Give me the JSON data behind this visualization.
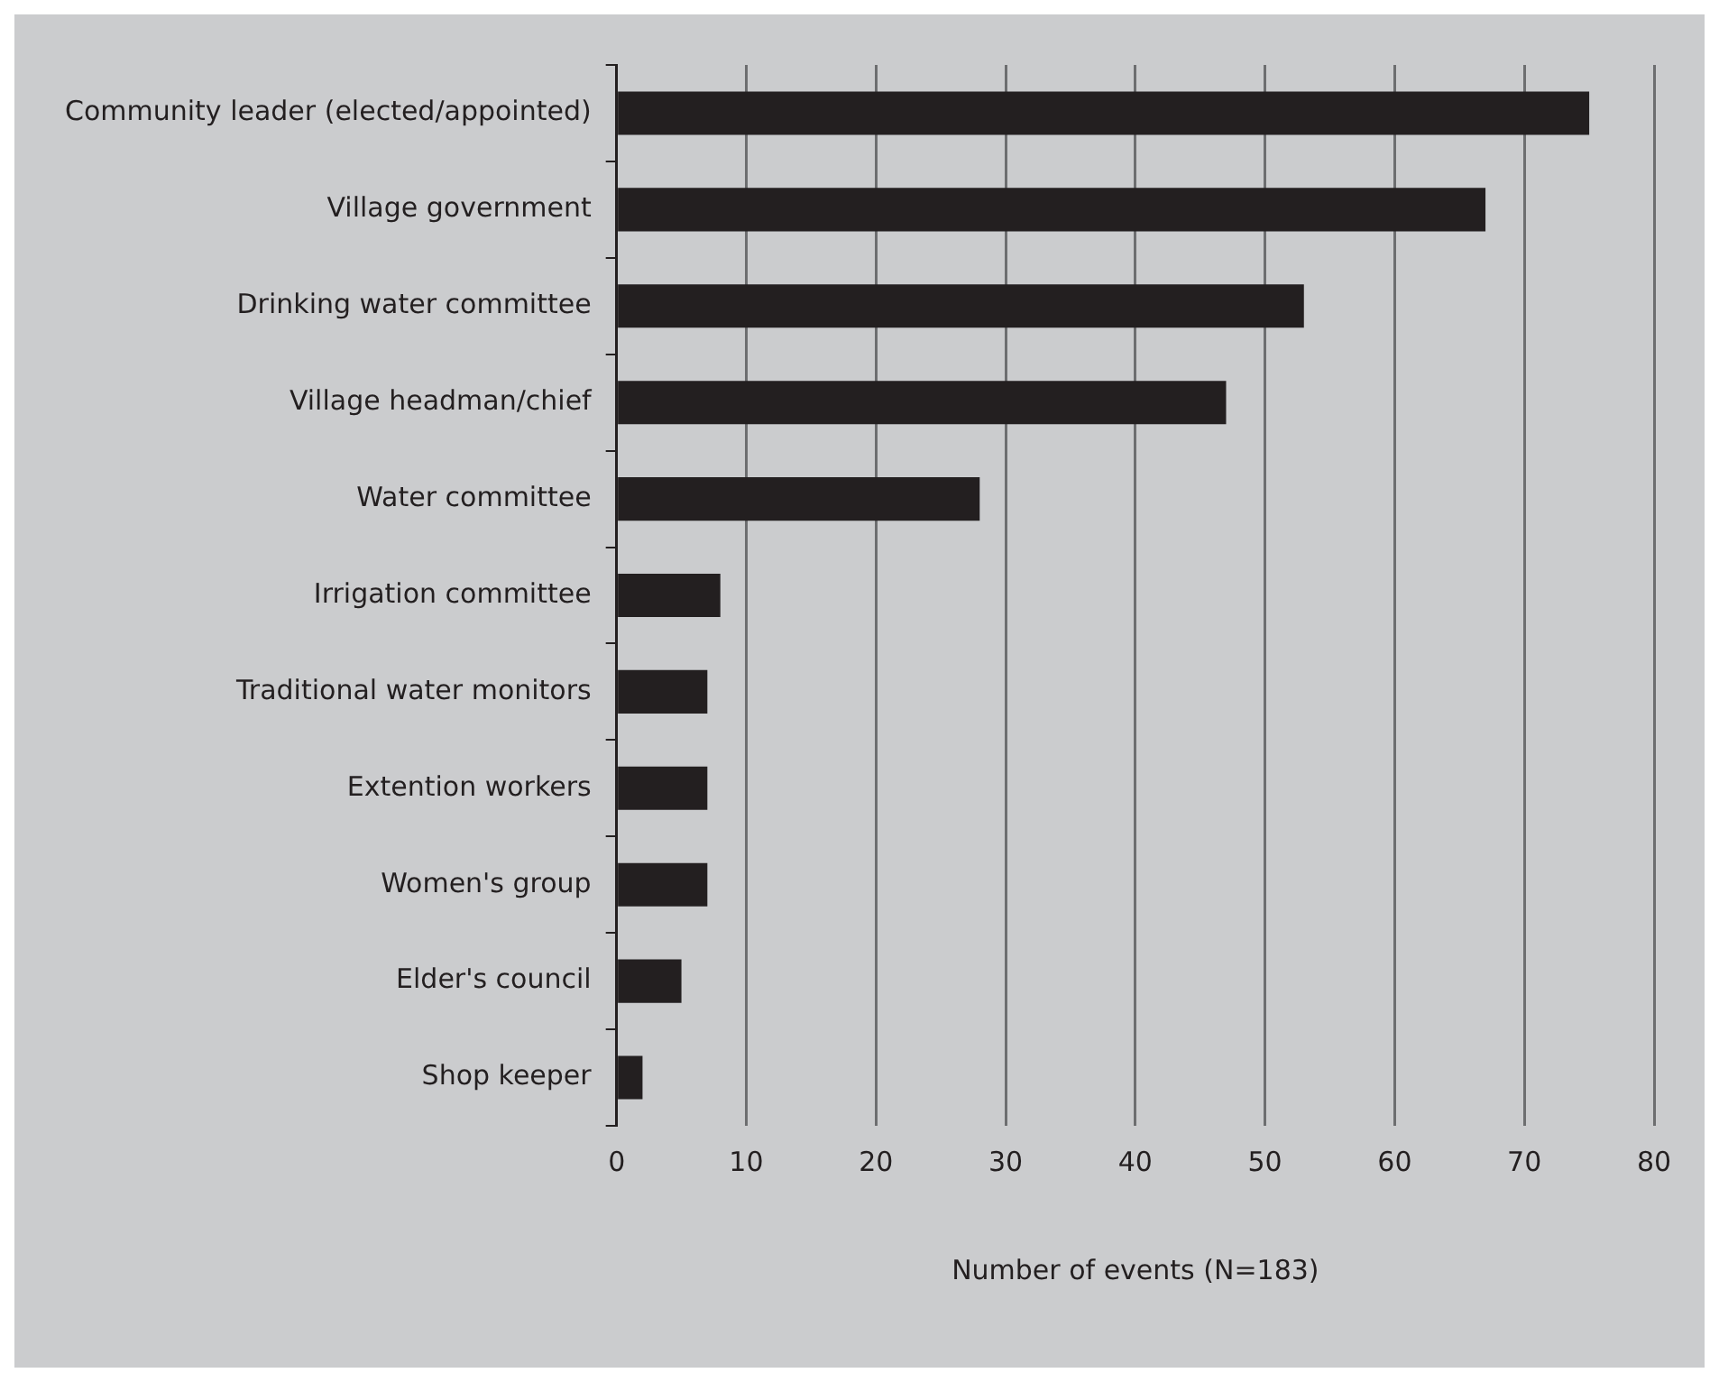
{
  "chart_data": {
    "type": "bar",
    "orientation": "horizontal",
    "xlabel": "Number of events (N=183)",
    "categories": [
      "Community leader (elected/appointed)",
      "Village government",
      "Drinking water committee",
      "Village headman/chief",
      "Water committee",
      "Irrigation committee",
      "Traditional water monitors",
      "Extention workers",
      "Women's group",
      "Elder's council",
      "Shop keeper"
    ],
    "values": [
      75,
      67,
      53,
      47,
      28,
      8,
      7,
      7,
      7,
      5,
      2
    ],
    "color": "#231f20",
    "xlim": [
      0,
      80
    ],
    "xticks": [
      0,
      10,
      20,
      30,
      40,
      50,
      60,
      70,
      80
    ],
    "grid": "x",
    "legend": false
  }
}
